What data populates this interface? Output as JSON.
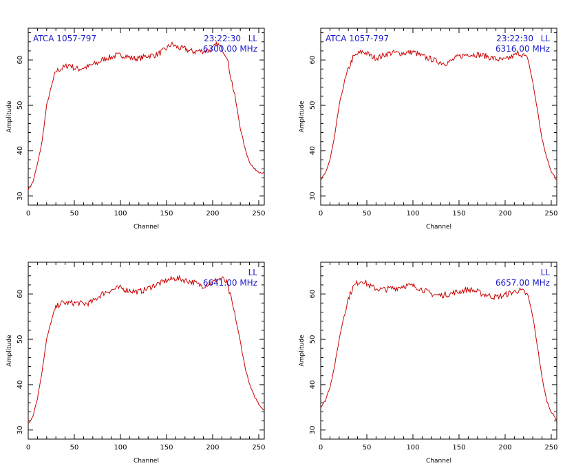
{
  "chart_data": [
    {
      "type": "line",
      "source_label": "ATCA 1057-797",
      "time_label": "23:22:30",
      "polarization": "LL",
      "frequency_label": "6300.00 MHz",
      "xlabel": "Channel",
      "ylabel": "Amplitude",
      "xlim": [
        0,
        256
      ],
      "ylim": [
        28,
        67
      ],
      "xticks": [
        0,
        50,
        100,
        150,
        200,
        250
      ],
      "yticks": [
        30,
        40,
        50,
        60
      ],
      "line_color": "#cc0000",
      "series": [
        {
          "x": [
            0,
            5,
            10,
            15,
            20,
            25,
            30,
            35,
            40,
            45,
            50,
            55,
            60,
            65,
            70,
            75,
            80,
            85,
            90,
            95,
            100,
            105,
            110,
            115,
            120,
            125,
            130,
            135,
            140,
            145,
            150,
            155,
            160,
            165,
            170,
            175,
            180,
            185,
            190,
            195,
            200,
            205,
            210,
            215,
            220,
            225,
            230,
            235,
            240,
            245,
            250,
            255
          ],
          "y": [
            31.5,
            33,
            37,
            42,
            50,
            54,
            57.5,
            58,
            58.5,
            59,
            58.2,
            58,
            58.3,
            58.5,
            59,
            59.3,
            60,
            60.5,
            60.6,
            61,
            61,
            61,
            60.5,
            60.4,
            60.3,
            60.6,
            61,
            61,
            61.2,
            61.8,
            62.5,
            63.5,
            63,
            62.5,
            62.5,
            62,
            61.8,
            62,
            62,
            62,
            62.5,
            63.5,
            62.5,
            61,
            56,
            51,
            45,
            40.5,
            37.5,
            36,
            35.4,
            35
          ]
        }
      ]
    },
    {
      "type": "line",
      "source_label": "ATCA 1057-797",
      "time_label": "23:22:30",
      "polarization": "LL",
      "frequency_label": "6316.00 MHz",
      "xlabel": "Channel",
      "ylabel": "Amplitude",
      "xlim": [
        0,
        256
      ],
      "ylim": [
        28,
        67
      ],
      "xticks": [
        0,
        50,
        100,
        150,
        200,
        250
      ],
      "yticks": [
        30,
        40,
        50,
        60
      ],
      "line_color": "#cc0000",
      "series": [
        {
          "x": [
            0,
            5,
            10,
            15,
            20,
            25,
            30,
            35,
            40,
            45,
            50,
            55,
            60,
            65,
            70,
            75,
            80,
            85,
            90,
            95,
            100,
            105,
            110,
            115,
            120,
            125,
            130,
            135,
            140,
            145,
            150,
            155,
            160,
            165,
            170,
            175,
            180,
            185,
            190,
            195,
            200,
            205,
            210,
            215,
            220,
            225,
            230,
            235,
            240,
            245,
            250,
            255
          ],
          "y": [
            33.5,
            35,
            38,
            43,
            50,
            54.5,
            58,
            60.5,
            61.3,
            61.8,
            61.5,
            60.8,
            60.5,
            60.7,
            61.2,
            61.5,
            61.6,
            61.5,
            61.5,
            61.6,
            61.8,
            61.3,
            60.8,
            60.5,
            60.2,
            59.8,
            59.5,
            59.3,
            59.6,
            60.2,
            60.8,
            61,
            61.3,
            61.2,
            61.2,
            61,
            60.8,
            60.5,
            60.2,
            60,
            60,
            60.5,
            61,
            61.5,
            61,
            60,
            55,
            49,
            42.5,
            38.5,
            35.5,
            33.7
          ]
        }
      ]
    },
    {
      "type": "line",
      "source_label": "",
      "time_label": "",
      "polarization": "LL",
      "frequency_label": "6641.00 MHz",
      "xlabel": "Channel",
      "ylabel": "Amplitude",
      "xlim": [
        0,
        256
      ],
      "ylim": [
        28,
        67
      ],
      "xticks": [
        0,
        50,
        100,
        150,
        200,
        250
      ],
      "yticks": [
        30,
        40,
        50,
        60
      ],
      "line_color": "#cc0000",
      "series": [
        {
          "x": [
            0,
            5,
            10,
            15,
            20,
            25,
            30,
            35,
            40,
            45,
            50,
            55,
            60,
            65,
            70,
            75,
            80,
            85,
            90,
            95,
            100,
            105,
            110,
            115,
            120,
            125,
            130,
            135,
            140,
            145,
            150,
            155,
            160,
            165,
            170,
            175,
            180,
            185,
            190,
            195,
            200,
            205,
            210,
            215,
            220,
            225,
            230,
            235,
            240,
            245,
            250,
            255
          ],
          "y": [
            31.5,
            33,
            37,
            43,
            50,
            54,
            57,
            58,
            58,
            58,
            58,
            58,
            57.8,
            58,
            58.3,
            59.2,
            60,
            60.5,
            60.8,
            61.2,
            61.3,
            61,
            60.8,
            60.6,
            60.5,
            60.8,
            61.2,
            61.8,
            62.2,
            62.5,
            63,
            63.2,
            63.5,
            63.3,
            63,
            62.8,
            62.5,
            62,
            61.8,
            62.2,
            62.5,
            63.2,
            63.5,
            62.5,
            59,
            54.5,
            49.5,
            44,
            40,
            37.5,
            35.8,
            34.5
          ]
        }
      ]
    },
    {
      "type": "line",
      "source_label": "",
      "time_label": "",
      "polarization": "LL",
      "frequency_label": "6657.00 MHz",
      "xlabel": "Channel",
      "ylabel": "Amplitude",
      "xlim": [
        0,
        256
      ],
      "ylim": [
        28,
        67
      ],
      "xticks": [
        0,
        50,
        100,
        150,
        200,
        250
      ],
      "yticks": [
        30,
        40,
        50,
        60
      ],
      "line_color": "#cc0000",
      "series": [
        {
          "x": [
            0,
            5,
            10,
            15,
            20,
            25,
            30,
            35,
            40,
            45,
            50,
            55,
            60,
            65,
            70,
            75,
            80,
            85,
            90,
            95,
            100,
            105,
            110,
            115,
            120,
            125,
            130,
            135,
            140,
            145,
            150,
            155,
            160,
            165,
            170,
            175,
            180,
            185,
            190,
            195,
            200,
            205,
            210,
            215,
            220,
            225,
            230,
            235,
            240,
            245,
            250,
            255
          ],
          "y": [
            35,
            36.5,
            39.5,
            44,
            50,
            55,
            59,
            61.5,
            62.5,
            63,
            62.2,
            61.5,
            61.2,
            61,
            61,
            61.2,
            61.3,
            61.5,
            61.8,
            61.8,
            61.8,
            61.5,
            61,
            60.5,
            60,
            59.8,
            59.7,
            59.8,
            60,
            60.3,
            60.5,
            60.8,
            61,
            60.8,
            60.5,
            60,
            59.8,
            59.5,
            59.3,
            59.5,
            59.8,
            60.2,
            60.5,
            60.8,
            60.5,
            59.5,
            55,
            48.5,
            41.5,
            36.5,
            34,
            32.5
          ]
        }
      ]
    }
  ]
}
